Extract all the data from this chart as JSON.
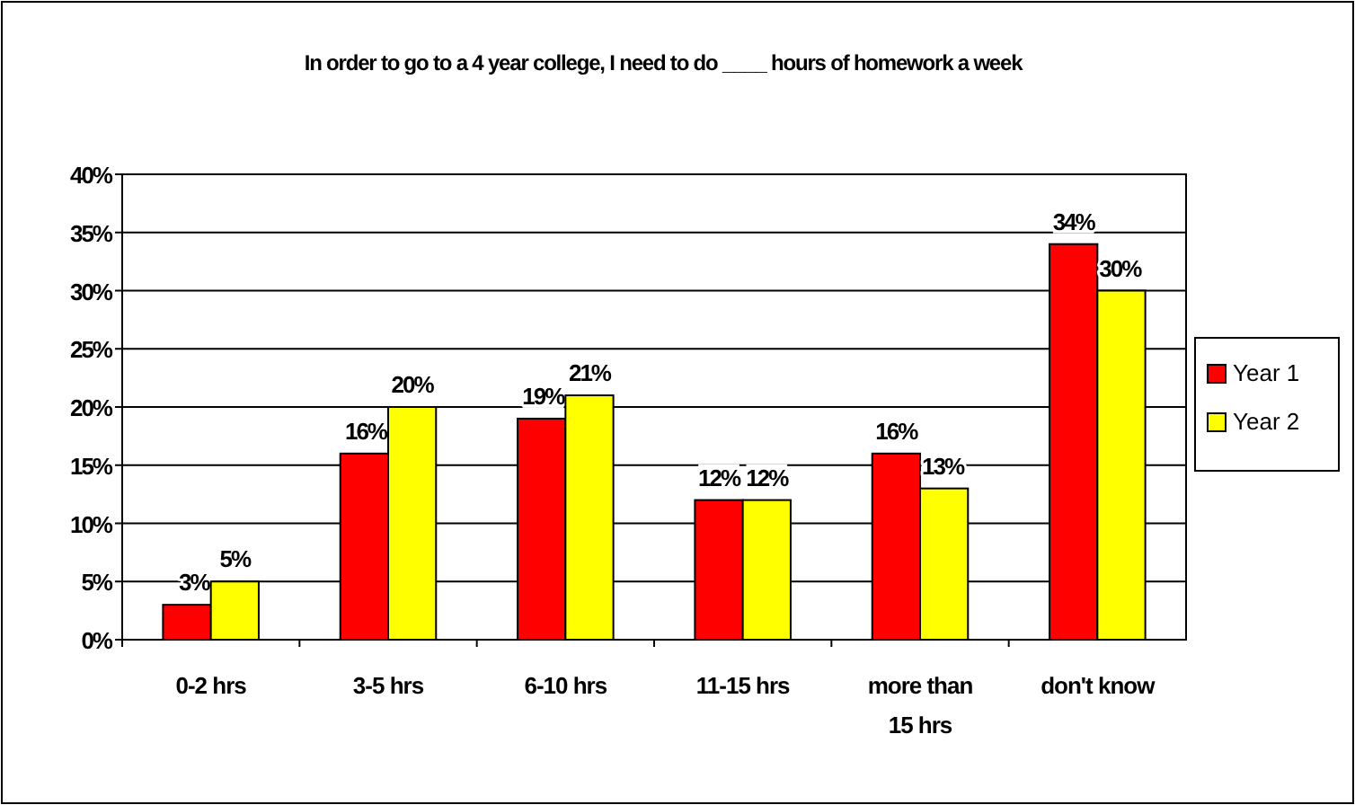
{
  "chart_data": {
    "type": "bar",
    "title": "In order to go to a 4 year college, I need to do ____ hours of homework a week",
    "categories": [
      "0-2 hrs",
      "3-5 hrs",
      "6-10 hrs",
      "11-15 hrs",
      "more than 15 hrs",
      "don't know"
    ],
    "series": [
      {
        "name": "Year 1",
        "color": "#ff0000",
        "values": [
          3,
          16,
          19,
          12,
          16,
          34
        ],
        "value_labels": [
          "3%",
          "16%",
          "19%",
          "12%",
          "16%",
          "34%"
        ]
      },
      {
        "name": "Year 2",
        "color": "#ffff00",
        "values": [
          5,
          20,
          21,
          12,
          13,
          30
        ],
        "value_labels": [
          "5%",
          "20%",
          "21%",
          "12%",
          "13%",
          "30%"
        ]
      }
    ],
    "ylim": [
      0,
      40
    ],
    "yticks": [
      {
        "value": 0,
        "label": "0%"
      },
      {
        "value": 5,
        "label": "5%"
      },
      {
        "value": 10,
        "label": "10%"
      },
      {
        "value": 15,
        "label": "15%"
      },
      {
        "value": 20,
        "label": "20%"
      },
      {
        "value": 25,
        "label": "25%"
      },
      {
        "value": 30,
        "label": "30%"
      },
      {
        "value": 35,
        "label": "35%"
      },
      {
        "value": 40,
        "label": "40%"
      }
    ],
    "grid": "y",
    "legend": "right"
  }
}
